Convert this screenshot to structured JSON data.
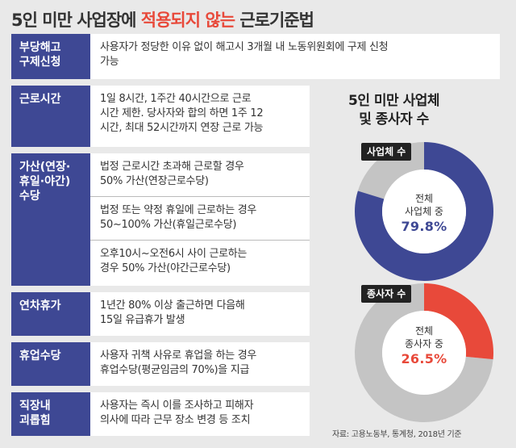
{
  "title": {
    "prefix": "5인 미만 사업장에 ",
    "highlight": "적용되지 않는",
    "suffix": " 근로기준법"
  },
  "rows": [
    {
      "label": "부당해고\n구제신청",
      "descs": [
        "사용자가 정당한 이유 없이 해고시  3개월 내 노동위원회에 구제 신청\n가능"
      ]
    },
    {
      "label": "근로시간",
      "descs": [
        "1일 8시간, 1주간 40시간으로 근로\n시간 제한. 당사자와 합의 하면 1주 12\n시간, 최대 52시간까지 연장 근로 가능"
      ]
    },
    {
      "label": "가산(연장·\n휴일·야간)\n수당",
      "descs": [
        "법정 근로시간 초과해 근로할 경우\n50% 가산(연장근로수당)",
        "법정 또는 약정 휴일에 근로하는 경우\n50~100% 가산(휴일근로수당)",
        "오후10시~오전6시 사이 근로하는\n경우 50% 가산(야간근로수당)"
      ]
    },
    {
      "label": "연차휴가",
      "descs": [
        "1년간 80% 이상 출근하면 다음해\n15일 유급휴가 발생"
      ]
    },
    {
      "label": "휴업수당",
      "descs": [
        "사용자 귀책 사유로 휴업을 하는 경우\n휴업수당(평균임금의 70%)을 지급"
      ]
    },
    {
      "label": "직장내\n괴롭힘",
      "descs": [
        "사용자는 즉시 이를 조사하고 피해자\n의사에 따라 근무 장소 변경 등 조치"
      ]
    }
  ],
  "stats_title": "5인 미만 사업체\n및 종사자 수",
  "chart_data": [
    {
      "type": "pie",
      "tag": "사업체 수",
      "center_label": "전체\n사업체 중",
      "value_label": "79.8%",
      "value": 79.8,
      "color": "#3e4894",
      "rest_color": "#c4c4c4",
      "value_color": "#3e4894"
    },
    {
      "type": "pie",
      "tag": "종사자 수",
      "center_label": "전체\n종사자 중",
      "value_label": "26.5%",
      "value": 26.5,
      "color": "#e8493a",
      "rest_color": "#c4c4c4",
      "value_color": "#e8493a"
    }
  ],
  "source": "자료: 고용노동부, 통계청, 2018년 기준"
}
